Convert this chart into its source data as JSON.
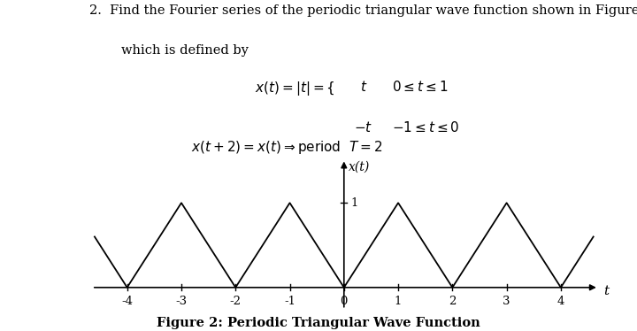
{
  "xlabel": "t",
  "ylabel": "x(t)",
  "xmin": -4.7,
  "xmax": 4.7,
  "ymin": -0.28,
  "ymax": 1.52,
  "xticks": [
    -4,
    -3,
    -2,
    -1,
    0,
    1,
    2,
    3,
    4
  ],
  "ytick_val": 1.0,
  "figure_caption": "Figure 2: Periodic Triangular Wave Function",
  "bg_color": "#ffffff",
  "line_color": "#000000",
  "axis_color": "#000000",
  "font_size_text": 10.5,
  "font_size_caption": 10.5,
  "font_size_tick": 9.5,
  "font_size_eq": 11
}
